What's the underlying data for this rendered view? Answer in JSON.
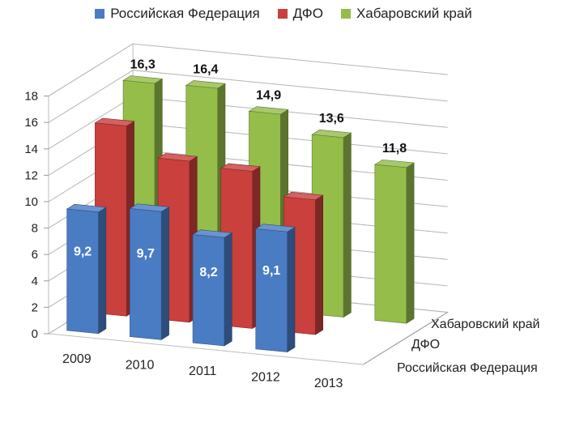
{
  "chart_data": {
    "type": "bar",
    "subtype": "3d-clustered-column",
    "categories": [
      "2009",
      "2010",
      "2011",
      "2012",
      "2013"
    ],
    "depth_labels": [
      "Хабаровский край",
      "ДФО",
      "Российская Федерация"
    ],
    "series": [
      {
        "name": "Российская Федерация",
        "color": "#4a7cc4",
        "values": [
          9.2,
          9.7,
          8.2,
          9.1,
          null
        ],
        "labels": [
          "9,2",
          "9,7",
          "8,2",
          "9,1",
          ""
        ]
      },
      {
        "name": "ДФО",
        "color": "#c9403d",
        "values": [
          14.4,
          12.2,
          11.9,
          10.2,
          null
        ],
        "labels": [
          "",
          "",
          "",
          "",
          ""
        ]
      },
      {
        "name": "Хабаровский край",
        "color": "#95bd4a",
        "values": [
          16.3,
          16.4,
          14.9,
          13.6,
          11.8
        ],
        "labels": [
          "16,3",
          "16,4",
          "14,9",
          "13,6",
          "11,8"
        ]
      }
    ],
    "y_ticks": [
      "0",
      "2",
      "4",
      "6",
      "8",
      "10",
      "12",
      "14",
      "16",
      "18"
    ],
    "ylim": [
      0,
      18
    ],
    "grid": true,
    "legend": "top"
  }
}
